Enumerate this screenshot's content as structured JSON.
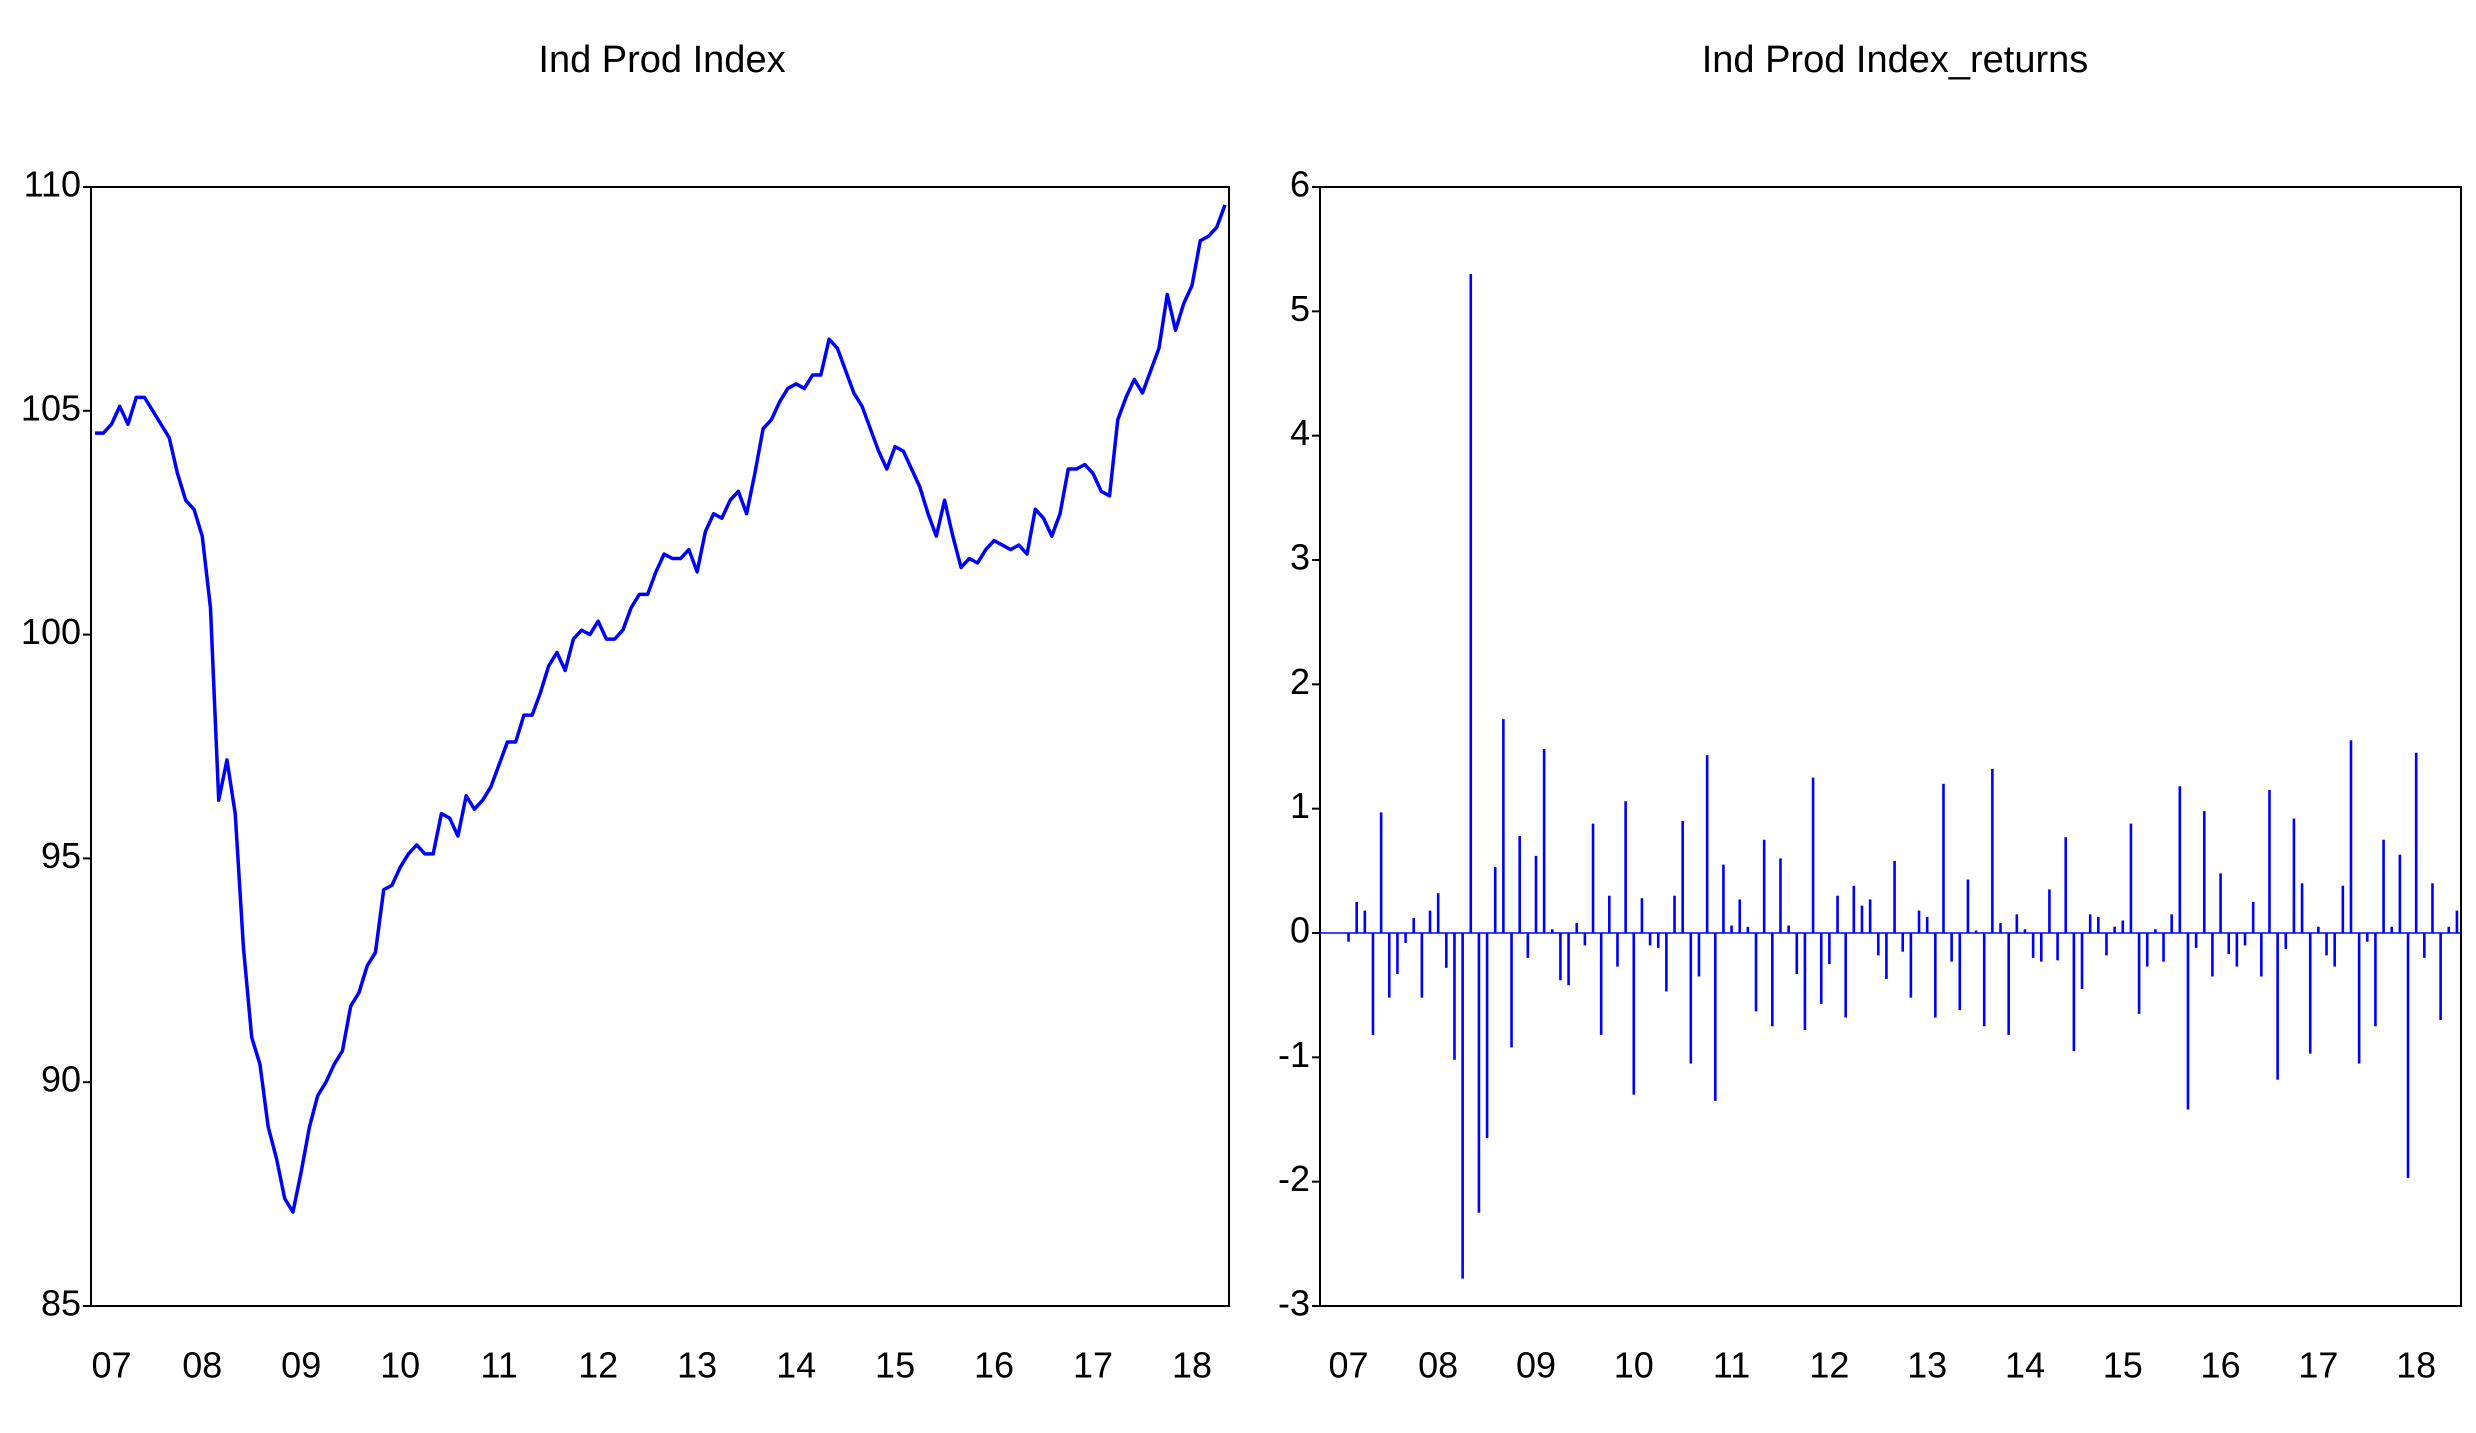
{
  "chart_data": [
    {
      "type": "line",
      "title": "Ind Prod Index",
      "color": "#0000ff",
      "categories": [
        null,
        null,
        "07",
        null,
        null,
        null,
        null,
        null,
        null,
        null,
        null,
        null,
        null,
        "08",
        null,
        null,
        null,
        null,
        null,
        null,
        null,
        null,
        null,
        null,
        null,
        "09",
        null,
        null,
        null,
        null,
        null,
        null,
        null,
        null,
        null,
        null,
        null,
        "10",
        null,
        null,
        null,
        null,
        null,
        null,
        null,
        null,
        null,
        null,
        null,
        "11",
        null,
        null,
        null,
        null,
        null,
        null,
        null,
        null,
        null,
        null,
        null,
        "12",
        null,
        null,
        null,
        null,
        null,
        null,
        null,
        null,
        null,
        null,
        null,
        "13",
        null,
        null,
        null,
        null,
        null,
        null,
        null,
        null,
        null,
        null,
        null,
        "14",
        null,
        null,
        null,
        null,
        null,
        null,
        null,
        null,
        null,
        null,
        null,
        "15",
        null,
        null,
        null,
        null,
        null,
        null,
        null,
        null,
        null,
        null,
        null,
        "16",
        null,
        null,
        null,
        null,
        null,
        null,
        null,
        null,
        null,
        null,
        null,
        "17",
        null,
        null,
        null,
        null,
        null,
        null,
        null,
        null,
        null,
        null,
        null,
        "18",
        null,
        null,
        null,
        null
      ],
      "values": [
        104.5,
        104.5,
        104.7,
        105.1,
        104.7,
        105.3,
        105.3,
        105.0,
        104.7,
        104.4,
        103.6,
        103.0,
        102.8,
        102.2,
        100.6,
        96.3,
        97.2,
        96.0,
        93.0,
        91.0,
        90.4,
        89.0,
        88.3,
        87.4,
        87.1,
        88.0,
        89.0,
        89.7,
        90.0,
        90.4,
        90.7,
        91.7,
        92.0,
        92.6,
        92.9,
        94.3,
        94.4,
        94.8,
        95.1,
        95.3,
        95.1,
        95.1,
        96.0,
        95.9,
        95.5,
        96.4,
        96.1,
        96.3,
        96.6,
        97.1,
        97.6,
        97.6,
        98.2,
        98.2,
        98.7,
        99.3,
        99.6,
        99.2,
        99.9,
        100.1,
        100.0,
        100.3,
        99.9,
        99.9,
        100.1,
        100.6,
        100.9,
        100.9,
        101.4,
        101.8,
        101.7,
        101.7,
        101.9,
        101.4,
        102.3,
        102.7,
        102.6,
        103.0,
        103.2,
        102.7,
        103.6,
        104.6,
        104.8,
        105.2,
        105.5,
        105.6,
        105.5,
        105.8,
        105.8,
        106.6,
        106.4,
        105.9,
        105.4,
        105.1,
        104.6,
        104.1,
        103.7,
        104.2,
        104.1,
        103.7,
        103.3,
        102.7,
        102.2,
        103.0,
        102.2,
        101.5,
        101.7,
        101.6,
        101.9,
        102.1,
        102.0,
        101.9,
        102.0,
        101.8,
        102.8,
        102.6,
        102.2,
        102.7,
        103.7,
        103.7,
        103.8,
        103.6,
        103.2,
        103.1,
        104.8,
        105.3,
        105.7,
        105.4,
        105.9,
        106.4,
        107.6,
        106.8,
        107.4,
        107.8,
        108.8,
        108.9,
        109.1,
        109.6
      ],
      "ylim": [
        85,
        110
      ],
      "yticks": [
        85,
        90,
        95,
        100,
        105,
        110
      ]
    },
    {
      "type": "bar",
      "title": "Ind Prod Index_returns",
      "color": "#0000ff",
      "categories": [
        null,
        null,
        null,
        "07",
        null,
        null,
        null,
        null,
        null,
        null,
        null,
        null,
        null,
        null,
        "08",
        null,
        null,
        null,
        null,
        null,
        null,
        null,
        null,
        null,
        null,
        null,
        "09",
        null,
        null,
        null,
        null,
        null,
        null,
        null,
        null,
        null,
        null,
        null,
        "10",
        null,
        null,
        null,
        null,
        null,
        null,
        null,
        null,
        null,
        null,
        null,
        "11",
        null,
        null,
        null,
        null,
        null,
        null,
        null,
        null,
        null,
        null,
        null,
        "12",
        null,
        null,
        null,
        null,
        null,
        null,
        null,
        null,
        null,
        null,
        null,
        "13",
        null,
        null,
        null,
        null,
        null,
        null,
        null,
        null,
        null,
        null,
        null,
        "14",
        null,
        null,
        null,
        null,
        null,
        null,
        null,
        null,
        null,
        null,
        null,
        "15",
        null,
        null,
        null,
        null,
        null,
        null,
        null,
        null,
        null,
        null,
        null,
        "16",
        null,
        null,
        null,
        null,
        null,
        null,
        null,
        null,
        null,
        null,
        null,
        "17",
        null,
        null,
        null,
        null,
        null,
        null,
        null,
        null,
        null,
        null,
        null,
        "18",
        null,
        null,
        null,
        null,
        null
      ],
      "values": [
        null,
        null,
        null,
        -0.07,
        0.25,
        0.18,
        -0.82,
        0.97,
        -0.52,
        -0.33,
        -0.08,
        0.12,
        -0.52,
        0.18,
        0.32,
        -0.28,
        -1.02,
        -2.78,
        5.3,
        -2.25,
        -1.65,
        0.53,
        1.72,
        -0.92,
        0.78,
        -0.2,
        0.62,
        1.48,
        0.03,
        -0.38,
        -0.42,
        0.08,
        -0.1,
        0.88,
        -0.82,
        0.3,
        -0.27,
        1.06,
        -1.3,
        0.28,
        -0.1,
        -0.12,
        -0.47,
        0.3,
        0.9,
        -1.05,
        -0.35,
        1.43,
        -1.35,
        0.55,
        0.06,
        0.27,
        0.05,
        -0.63,
        0.75,
        -0.75,
        0.6,
        0.06,
        -0.33,
        -0.78,
        1.25,
        -0.57,
        -0.25,
        0.3,
        -0.68,
        0.38,
        0.22,
        0.27,
        -0.18,
        -0.37,
        0.58,
        -0.15,
        -0.52,
        0.18,
        0.13,
        -0.68,
        1.2,
        -0.23,
        -0.62,
        0.43,
        0.02,
        -0.75,
        1.32,
        0.08,
        -0.82,
        0.15,
        0.03,
        -0.2,
        -0.23,
        0.35,
        -0.22,
        0.77,
        -0.95,
        -0.45,
        0.15,
        0.13,
        -0.18,
        0.05,
        0.1,
        0.88,
        -0.65,
        -0.27,
        0.03,
        -0.23,
        0.15,
        1.18,
        -1.42,
        -0.12,
        0.98,
        -0.35,
        0.48,
        -0.17,
        -0.27,
        -0.1,
        0.25,
        -0.35,
        1.15,
        -1.18,
        -0.13,
        0.92,
        0.4,
        -0.97,
        0.05,
        -0.18,
        -0.27,
        0.38,
        1.55,
        -1.05,
        -0.07,
        -0.75,
        0.75,
        0.05,
        0.63,
        -1.97,
        1.45,
        -0.2,
        0.4,
        -0.7,
        0.05,
        0.18
      ],
      "ylim": [
        -3,
        6
      ],
      "yticks": [
        -3,
        -2,
        -1,
        0,
        1,
        2,
        3,
        4,
        5,
        6
      ]
    }
  ]
}
